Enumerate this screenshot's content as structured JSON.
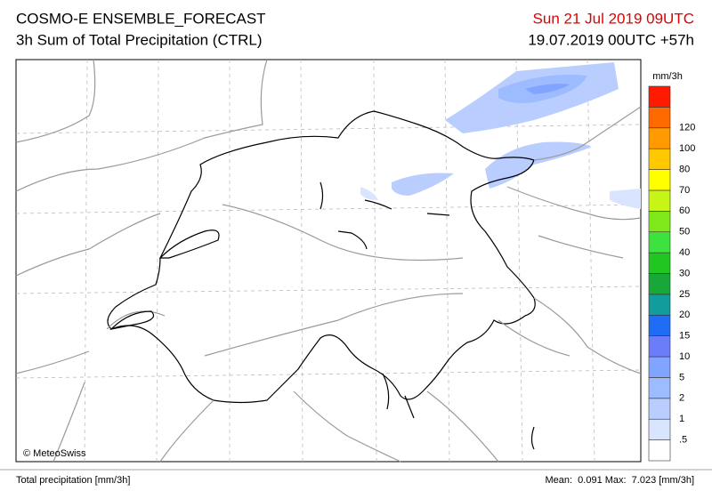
{
  "header": {
    "title": "COSMO-E ENSEMBLE_FORECAST",
    "subtitle": "3h Sum of Total Precipitation (CTRL)",
    "valid_time": "Sun 21 Jul 2019 09UTC",
    "run": "19.07.2019 00UTC +57h"
  },
  "map": {
    "credit": "© MeteoSwiss"
  },
  "legend": {
    "unit": "mm/3h",
    "levels": [
      ".5",
      "1",
      "2",
      "5",
      "10",
      "15",
      "20",
      "25",
      "30",
      "40",
      "50",
      "60",
      "70",
      "80",
      "100",
      "120"
    ],
    "colors": [
      "#ffffff",
      "#d9e5ff",
      "#b9cdff",
      "#9dbbff",
      "#80a4ff",
      "#6b7df8",
      "#1f6cf5",
      "#129c9c",
      "#18a83a",
      "#21c621",
      "#3ee23e",
      "#7fe81a",
      "#c6f516",
      "#ffff00",
      "#ffc800",
      "#ff9a00",
      "#ff6a00",
      "#ff1a00"
    ]
  },
  "footer": {
    "left": "Total precipitation [mm/3h]",
    "right": "Mean:  0.091 Max:  7.023 [mm/3h]"
  }
}
